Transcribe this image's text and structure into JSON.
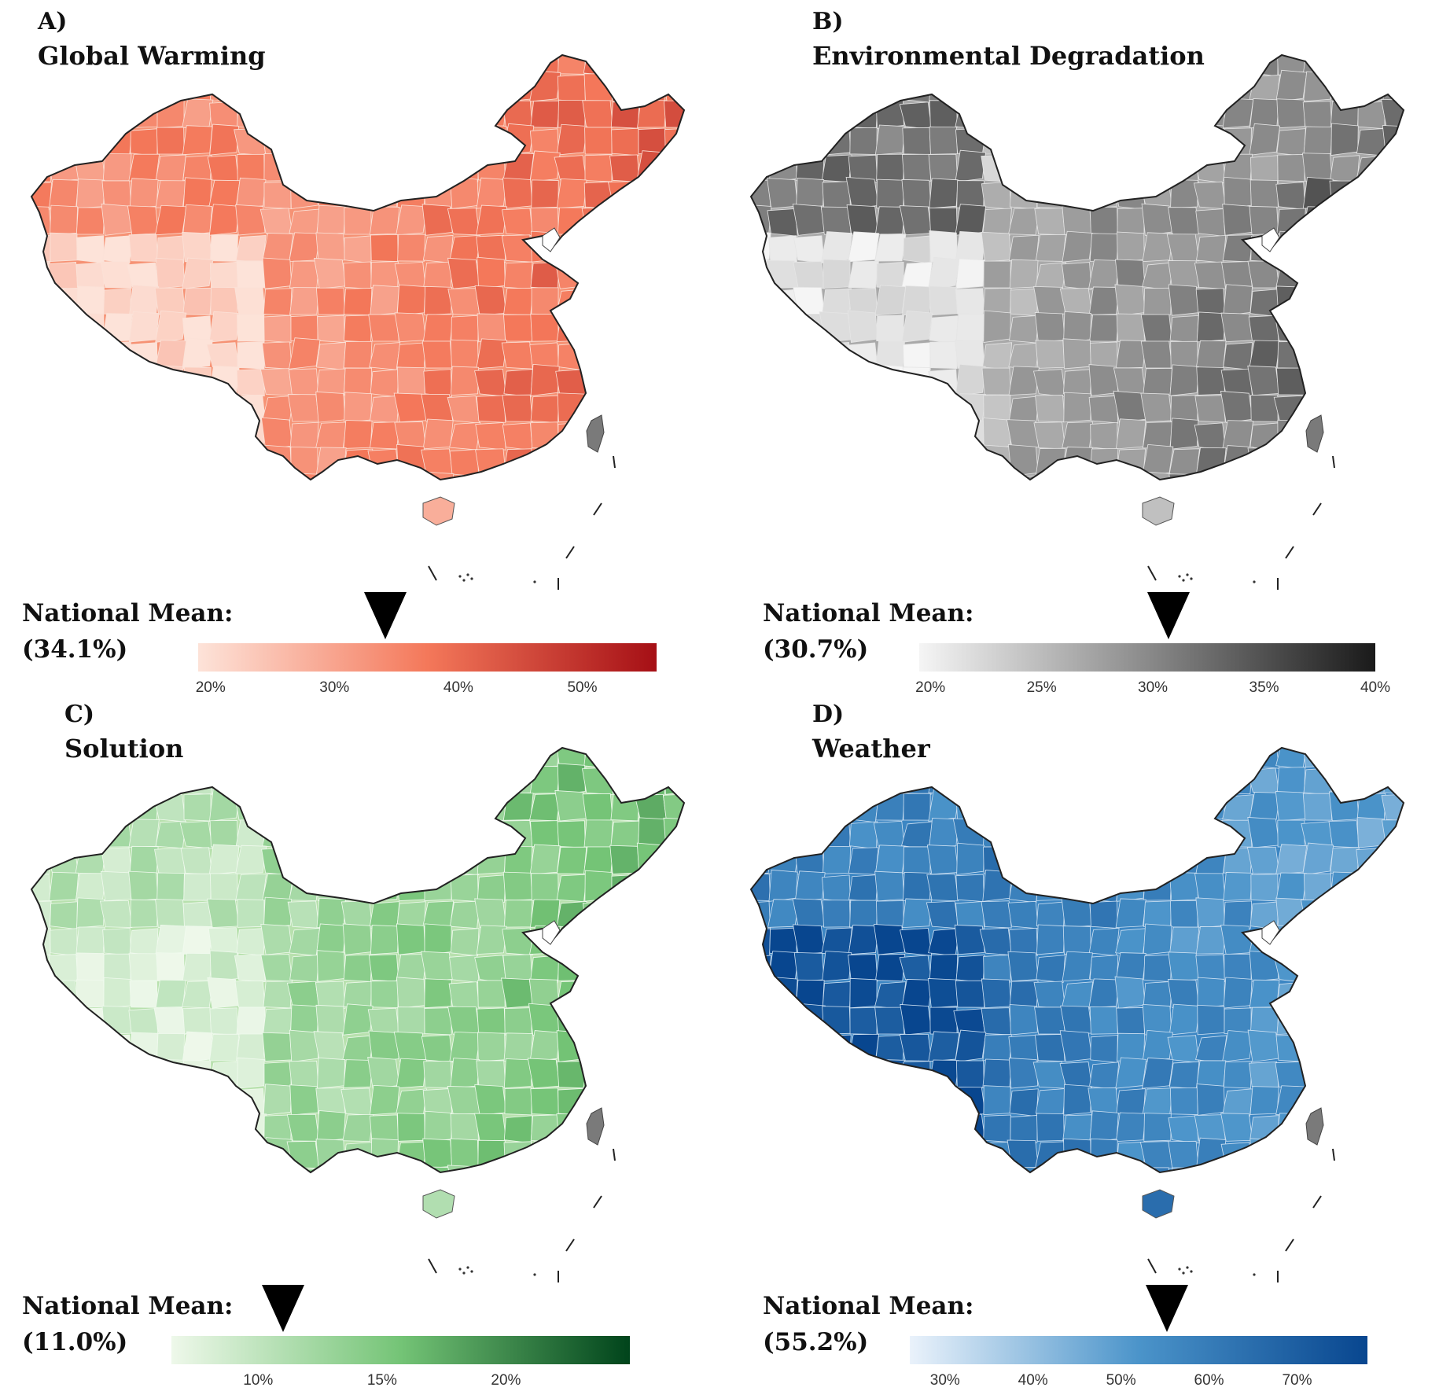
{
  "panels": [
    {
      "id": "a",
      "letter": "A)",
      "title": "Global Warming",
      "mean_label": "National Mean:",
      "mean_value": "(34.1%)",
      "mean_numeric": 34.1,
      "scale": {
        "min": 19,
        "max": 56,
        "ticks": [
          "20%",
          "30%",
          "40%",
          "50%"
        ],
        "tick_values": [
          20,
          30,
          40,
          50
        ]
      },
      "colors": {
        "low": "#fde3d9",
        "mid": "#f4785a",
        "high": "#a50f15",
        "west_light": "#fcdccf",
        "base": "#f69274",
        "border": "#fbe2d8"
      }
    },
    {
      "id": "b",
      "letter": "B)",
      "title": "Environmental Degradation",
      "mean_label": "National Mean:",
      "mean_value": "(30.7%)",
      "mean_numeric": 30.7,
      "scale": {
        "min": 19.5,
        "max": 40,
        "ticks": [
          "20%",
          "25%",
          "30%",
          "35%",
          "40%"
        ],
        "tick_values": [
          20,
          25,
          30,
          35,
          40
        ]
      },
      "colors": {
        "low": "#f5f5f5",
        "mid": "#8a8a8a",
        "high": "#1a1a1a",
        "west_light": "#ececec",
        "base": "#a9a9a9",
        "border": "#e5e5e5"
      }
    },
    {
      "id": "c",
      "letter": "C)",
      "title": "Solution",
      "mean_label": "National Mean:",
      "mean_value": "(11.0%)",
      "mean_numeric": 11.0,
      "scale": {
        "min": 6.5,
        "max": 25,
        "ticks": [
          "10%",
          "15%",
          "20%"
        ],
        "tick_values": [
          10,
          15,
          20
        ]
      },
      "colors": {
        "low": "#eef8ea",
        "mid": "#74c476",
        "high": "#00441b",
        "west_light": "#e6f5e0",
        "base": "#b8e1ae",
        "border": "#f0faee"
      }
    },
    {
      "id": "d",
      "letter": "D)",
      "title": "Weather",
      "mean_label": "National Mean:",
      "mean_value": "(55.2%)",
      "mean_numeric": 55.2,
      "scale": {
        "min": 26,
        "max": 78,
        "ticks": [
          "30%",
          "40%",
          "50%",
          "60%",
          "70%"
        ],
        "tick_values": [
          30,
          40,
          50,
          60,
          70
        ]
      },
      "colors": {
        "low": "#eaf2fb",
        "mid": "#4b94ca",
        "high": "#08468f",
        "west_light": "#0b4a94",
        "base": "#3c86c3",
        "border": "#cfe1f2"
      }
    }
  ]
}
